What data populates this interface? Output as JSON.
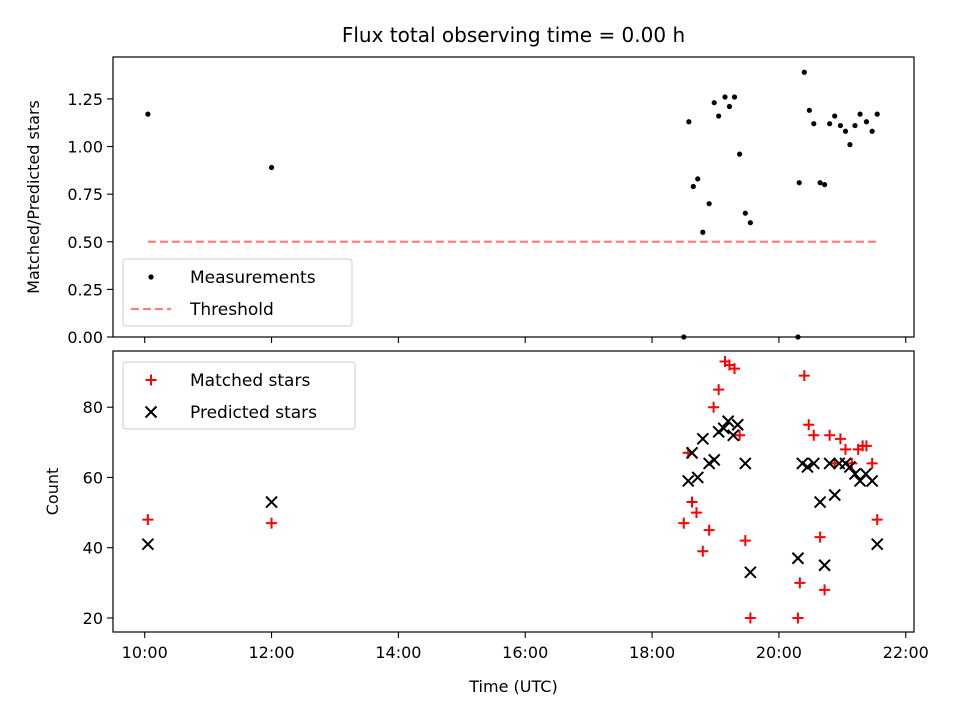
{
  "chart_data": [
    {
      "type": "scatter",
      "title": "Flux total observing time = 0.00 h",
      "xlabel": "",
      "ylabel": "Matched/Predicted stars",
      "xlim": [
        9.5,
        22.13
      ],
      "ylim": [
        0.0,
        1.47
      ],
      "yticks": [
        0.0,
        0.25,
        0.5,
        0.75,
        1.0,
        1.25
      ],
      "ytick_labels": [
        "0.00",
        "0.25",
        "0.50",
        "0.75",
        "1.00",
        "1.25"
      ],
      "legend_position": "lower-left",
      "series": [
        {
          "name": "Measurements",
          "marker": "dot",
          "color": "#000000",
          "points": [
            [
              10.05,
              1.17
            ],
            [
              12.0,
              0.89
            ],
            [
              18.5,
              0.0
            ],
            [
              18.58,
              1.13
            ],
            [
              18.65,
              0.79
            ],
            [
              18.72,
              0.83
            ],
            [
              18.8,
              0.55
            ],
            [
              18.9,
              0.7
            ],
            [
              18.98,
              1.23
            ],
            [
              19.05,
              1.16
            ],
            [
              19.15,
              1.26
            ],
            [
              19.22,
              1.21
            ],
            [
              19.3,
              1.26
            ],
            [
              19.38,
              0.96
            ],
            [
              19.47,
              0.65
            ],
            [
              19.55,
              0.6
            ],
            [
              20.3,
              0.0
            ],
            [
              20.32,
              0.81
            ],
            [
              20.4,
              1.39
            ],
            [
              20.48,
              1.19
            ],
            [
              20.55,
              1.12
            ],
            [
              20.65,
              0.81
            ],
            [
              20.72,
              0.8
            ],
            [
              20.8,
              1.12
            ],
            [
              20.88,
              1.16
            ],
            [
              20.97,
              1.11
            ],
            [
              21.05,
              1.08
            ],
            [
              21.12,
              1.01
            ],
            [
              21.2,
              1.11
            ],
            [
              21.28,
              1.17
            ],
            [
              21.38,
              1.13
            ],
            [
              21.47,
              1.08
            ],
            [
              21.55,
              1.17
            ]
          ]
        },
        {
          "name": "Threshold",
          "marker": "dashed-line",
          "color": "#ff7f7f",
          "points": [
            [
              10.05,
              0.5
            ],
            [
              21.55,
              0.5
            ]
          ]
        }
      ]
    },
    {
      "type": "scatter",
      "title": "",
      "xlabel": "Time (UTC)",
      "ylabel": "Count",
      "xlim": [
        9.5,
        22.13
      ],
      "ylim": [
        16,
        96
      ],
      "xticks": [
        10,
        12,
        14,
        16,
        18,
        20,
        22
      ],
      "xtick_labels": [
        "10:00",
        "12:00",
        "14:00",
        "16:00",
        "18:00",
        "20:00",
        "22:00"
      ],
      "yticks": [
        20,
        40,
        60,
        80
      ],
      "ytick_labels": [
        "20",
        "40",
        "60",
        "80"
      ],
      "legend_position": "upper-left",
      "series": [
        {
          "name": "Matched stars",
          "marker": "plus",
          "color": "#ff0000",
          "points": [
            [
              10.05,
              48
            ],
            [
              12.0,
              47
            ],
            [
              18.5,
              47
            ],
            [
              18.57,
              67
            ],
            [
              18.63,
              53
            ],
            [
              18.7,
              50
            ],
            [
              18.8,
              39
            ],
            [
              18.9,
              45
            ],
            [
              18.97,
              80
            ],
            [
              19.05,
              85
            ],
            [
              19.15,
              93
            ],
            [
              19.22,
              92
            ],
            [
              19.3,
              91
            ],
            [
              19.38,
              72
            ],
            [
              19.47,
              42
            ],
            [
              19.55,
              20
            ],
            [
              20.3,
              20
            ],
            [
              20.33,
              30
            ],
            [
              20.4,
              89
            ],
            [
              20.47,
              75
            ],
            [
              20.55,
              72
            ],
            [
              20.65,
              43
            ],
            [
              20.72,
              28
            ],
            [
              20.8,
              72
            ],
            [
              20.88,
              64
            ],
            [
              20.97,
              71
            ],
            [
              21.05,
              68
            ],
            [
              21.15,
              64
            ],
            [
              21.25,
              68
            ],
            [
              21.32,
              69
            ],
            [
              21.38,
              69
            ],
            [
              21.47,
              64
            ],
            [
              21.55,
              48
            ]
          ]
        },
        {
          "name": "Predicted stars",
          "marker": "x",
          "color": "#000000",
          "points": [
            [
              10.05,
              41
            ],
            [
              12.0,
              53
            ],
            [
              18.57,
              59
            ],
            [
              18.63,
              67
            ],
            [
              18.72,
              60
            ],
            [
              18.8,
              71
            ],
            [
              18.9,
              64
            ],
            [
              18.98,
              65
            ],
            [
              19.05,
              73
            ],
            [
              19.13,
              74
            ],
            [
              19.2,
              76
            ],
            [
              19.28,
              72
            ],
            [
              19.35,
              75
            ],
            [
              19.47,
              64
            ],
            [
              19.55,
              33
            ],
            [
              20.3,
              37
            ],
            [
              20.37,
              64
            ],
            [
              20.45,
              63
            ],
            [
              20.55,
              64
            ],
            [
              20.65,
              53
            ],
            [
              20.72,
              35
            ],
            [
              20.8,
              64
            ],
            [
              20.88,
              55
            ],
            [
              20.95,
              64
            ],
            [
              21.05,
              64
            ],
            [
              21.12,
              63
            ],
            [
              21.2,
              61
            ],
            [
              21.28,
              59
            ],
            [
              21.37,
              61
            ],
            [
              21.47,
              59
            ],
            [
              21.55,
              41
            ]
          ]
        }
      ]
    }
  ]
}
